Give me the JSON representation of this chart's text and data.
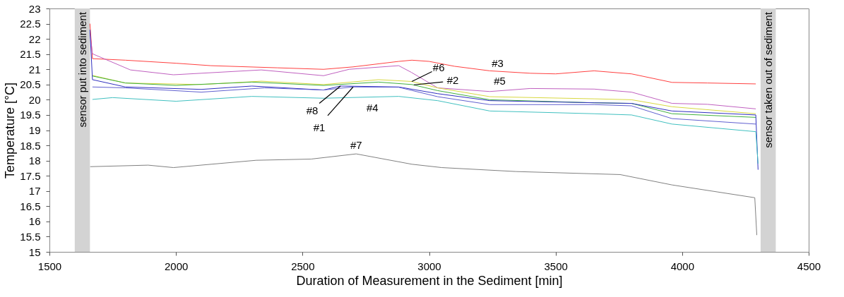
{
  "chart_data": {
    "type": "line",
    "xlabel": "Duration of Measurement in the Sediment [min]",
    "ylabel": "Temperature [°C]",
    "xlim": [
      1500,
      4500
    ],
    "xticks": [
      1500,
      2000,
      2500,
      3000,
      3500,
      4000,
      4500
    ],
    "ylim": [
      15,
      23
    ],
    "yticks": [
      15,
      15.5,
      16,
      16.5,
      17,
      17.5,
      18,
      18.5,
      19,
      19.5,
      20,
      20.5,
      21,
      21.5,
      22,
      22.5,
      23
    ],
    "grid": false,
    "legend": false,
    "marker": "none",
    "line_style": "solid",
    "series": [
      {
        "color": "#ff4040",
        "x": [
          1660,
          1670,
          1800,
          2000,
          2137,
          2400,
          2583,
          2700,
          2880,
          2932,
          3000,
          3100,
          3240,
          3400,
          3500,
          3652,
          3800,
          3960,
          4100,
          4291
        ],
        "values": [
          22.5,
          21.35,
          21.3,
          21.2,
          21.12,
          21.05,
          21.0,
          21.08,
          21.26,
          21.3,
          21.26,
          21.1,
          20.95,
          20.87,
          20.85,
          20.95,
          20.85,
          20.57,
          20.55,
          20.52
        ]
      },
      {
        "color": "#c060c0",
        "x": [
          1660,
          1670,
          1820,
          1990,
          2337,
          2583,
          2684,
          2880,
          2930,
          3034,
          3240,
          3400,
          3652,
          3800,
          3960,
          4100,
          4291
        ],
        "values": [
          22.2,
          21.51,
          20.98,
          20.82,
          20.98,
          20.79,
          21.0,
          21.12,
          20.9,
          20.39,
          20.27,
          20.37,
          20.35,
          20.25,
          19.88,
          19.85,
          19.7
        ]
      },
      {
        "color": "#d8d840",
        "x": [
          1670,
          1800,
          2100,
          2337,
          2583,
          2800,
          2932,
          3034,
          3240,
          3652,
          3800,
          3960,
          4291
        ],
        "values": [
          20.8,
          20.55,
          20.5,
          20.61,
          20.5,
          20.66,
          20.6,
          20.39,
          20.1,
          20.03,
          20.0,
          19.77,
          19.54
        ]
      },
      {
        "color": "#40b040",
        "x": [
          1670,
          1800,
          2000,
          2300,
          2583,
          2800,
          2932,
          3034,
          3240,
          3652,
          3800,
          3960,
          4291
        ],
        "values": [
          20.78,
          20.55,
          20.47,
          20.58,
          20.47,
          20.58,
          20.5,
          20.3,
          20.0,
          19.9,
          19.88,
          19.54,
          19.42
        ]
      },
      {
        "color": "#3030c0",
        "x": [
          1660,
          1670,
          1800,
          2100,
          2300,
          2583,
          2650,
          2880,
          3034,
          3240,
          3652,
          3800,
          3960,
          4291,
          4300
        ],
        "values": [
          22.3,
          20.66,
          20.42,
          20.34,
          20.45,
          20.32,
          20.45,
          20.42,
          20.2,
          19.97,
          19.9,
          19.88,
          19.63,
          19.5,
          17.7
        ]
      },
      {
        "color": "#6060d0",
        "x": [
          1670,
          1800,
          2100,
          2350,
          2583,
          2700,
          2880,
          3034,
          3240,
          3652,
          3800,
          3960,
          4291
        ],
        "values": [
          20.42,
          20.39,
          20.25,
          20.39,
          20.32,
          20.42,
          20.41,
          20.1,
          19.84,
          19.84,
          19.8,
          19.38,
          19.2
        ]
      },
      {
        "color": "#40c0c0",
        "x": [
          1670,
          1750,
          2000,
          2300,
          2583,
          2880,
          3034,
          3240,
          3652,
          3800,
          3960,
          4291,
          4300
        ],
        "values": [
          20.01,
          20.07,
          19.95,
          20.11,
          20.05,
          20.11,
          19.97,
          19.63,
          19.54,
          19.5,
          19.2,
          18.95,
          17.9
        ]
      },
      {
        "color": "#808080",
        "x": [
          1661,
          1890,
          1990,
          2317,
          2534,
          2712,
          2932,
          3050,
          3343,
          3755,
          3960,
          4287,
          4295
        ],
        "values": [
          17.8,
          17.85,
          17.77,
          18.01,
          18.05,
          18.22,
          17.88,
          17.77,
          17.64,
          17.54,
          17.2,
          16.78,
          15.55
        ]
      }
    ],
    "bands": [
      {
        "axis": "x",
        "from": 1600,
        "to": 1660,
        "label": "sensor put into sediment",
        "color": "#d3d3d3"
      },
      {
        "axis": "x",
        "from": 4310,
        "to": 4370,
        "label": "sensor taken out of sediment",
        "color": "#d3d3d3"
      }
    ],
    "annotations": [
      {
        "text": "#3",
        "x": 3271,
        "y": 20.92
      },
      {
        "text": "#5",
        "x": 3279,
        "y": 20.28
      },
      {
        "text": "#6",
        "x": 2932,
        "y": 20.6
      },
      {
        "text": "#2",
        "x": 2940,
        "y": 20.49
      },
      {
        "text": "#8",
        "x": 2650,
        "y": 20.45
      },
      {
        "text": "#1",
        "x": 2700,
        "y": 20.42
      },
      {
        "text": "#4",
        "x": 2776,
        "y": 20.09
      },
      {
        "text": "#7",
        "x": 2712,
        "y": 18.22
      }
    ]
  }
}
